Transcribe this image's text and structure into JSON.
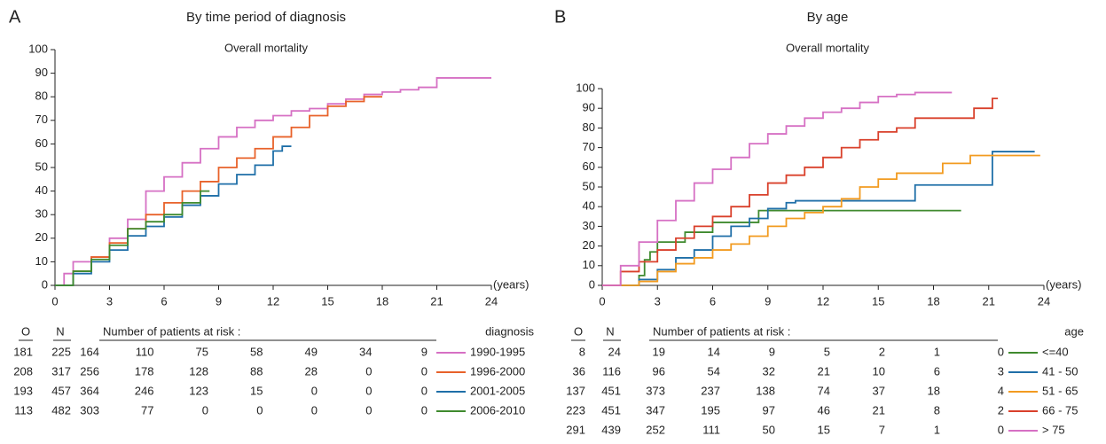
{
  "chart_data": [
    {
      "type": "line",
      "step": true,
      "label": "A",
      "title": "By time period of diagnosis",
      "subtitle": "Overall mortality",
      "x_label": "(years)",
      "xlim": [
        0,
        24
      ],
      "xticks": [
        0,
        3,
        6,
        9,
        12,
        15,
        18,
        21,
        24
      ],
      "ylim": [
        0,
        100
      ],
      "yticks": [
        0,
        10,
        20,
        30,
        40,
        50,
        60,
        70,
        80,
        90,
        100
      ],
      "series": [
        {
          "name": "1990-1995",
          "color": "#d670c4",
          "x": [
            0,
            0.5,
            1,
            2,
            3,
            4,
            5,
            6,
            7,
            8,
            9,
            10,
            11,
            12,
            13,
            14,
            15,
            16,
            17,
            18,
            19,
            20,
            21,
            24
          ],
          "values": [
            0,
            5,
            10,
            12,
            20,
            28,
            40,
            46,
            52,
            58,
            63,
            67,
            70,
            72,
            74,
            75,
            77,
            79,
            81,
            82,
            83,
            84,
            88,
            88
          ]
        },
        {
          "name": "1996-2000",
          "color": "#e8622a",
          "x": [
            0,
            1,
            2,
            3,
            4,
            5,
            6,
            7,
            8,
            9,
            10,
            11,
            12,
            13,
            14,
            15,
            16,
            17,
            18
          ],
          "values": [
            0,
            6,
            12,
            18,
            24,
            30,
            35,
            40,
            44,
            50,
            54,
            58,
            63,
            67,
            72,
            76,
            78,
            80,
            80
          ]
        },
        {
          "name": "2001-2005",
          "color": "#1f6fa8",
          "x": [
            0,
            1,
            2,
            3,
            4,
            5,
            6,
            7,
            8,
            9,
            10,
            11,
            12,
            12.5,
            13
          ],
          "values": [
            0,
            5,
            10,
            15,
            21,
            25,
            29,
            34,
            38,
            43,
            47,
            51,
            57,
            59,
            59
          ]
        },
        {
          "name": "2006-2010",
          "color": "#3f8a2e",
          "x": [
            0,
            1,
            2,
            3,
            4,
            5,
            6,
            7,
            8,
            8.5
          ],
          "values": [
            0,
            6,
            11,
            17,
            24,
            27,
            30,
            35,
            40,
            40
          ]
        }
      ],
      "risk_table": {
        "o_header": "O",
        "n_header": "N",
        "title": "Number of patients at risk :",
        "group_header": "diagnosis",
        "rows": [
          {
            "o": 181,
            "n": 225,
            "at_risk": [
              164,
              110,
              75,
              58,
              49,
              34,
              9
            ]
          },
          {
            "o": 208,
            "n": 317,
            "at_risk": [
              256,
              178,
              128,
              88,
              28,
              0,
              0
            ]
          },
          {
            "o": 193,
            "n": 457,
            "at_risk": [
              364,
              246,
              123,
              15,
              0,
              0,
              0
            ]
          },
          {
            "o": 113,
            "n": 482,
            "at_risk": [
              303,
              77,
              0,
              0,
              0,
              0,
              0
            ]
          }
        ]
      }
    },
    {
      "type": "line",
      "step": true,
      "label": "B",
      "title": "By age",
      "subtitle": "Overall mortality",
      "x_label": "(years)",
      "xlim": [
        0,
        24
      ],
      "xticks": [
        0,
        3,
        6,
        9,
        12,
        15,
        18,
        21,
        24
      ],
      "ylim": [
        0,
        100
      ],
      "yticks": [
        0,
        10,
        20,
        30,
        40,
        50,
        60,
        70,
        80,
        90,
        100
      ],
      "series": [
        {
          "name": "<=40",
          "color": "#3f8a2e",
          "x": [
            0,
            1.9,
            2,
            2.3,
            2.6,
            3,
            4,
            4.5,
            5.5,
            6,
            8,
            8.5,
            10,
            19.5
          ],
          "values": [
            0,
            0,
            5,
            13,
            17,
            22,
            22,
            27,
            27,
            32,
            32,
            38,
            38,
            38
          ]
        },
        {
          "name": "41 - 50",
          "color": "#1f6fa8",
          "x": [
            0,
            2,
            3,
            4,
            5,
            6,
            7,
            8,
            9,
            10,
            10.5,
            16.5,
            17,
            21,
            21.2,
            23.5
          ],
          "values": [
            0,
            3,
            8,
            14,
            18,
            25,
            30,
            34,
            39,
            42,
            43,
            43,
            51,
            51,
            68,
            68
          ]
        },
        {
          "name": "51 - 65",
          "color": "#f29b20",
          "x": [
            0,
            2,
            3,
            4,
            5,
            6,
            7,
            8,
            9,
            10,
            11,
            12,
            13,
            14,
            15,
            16,
            17,
            18.5,
            20,
            23.8
          ],
          "values": [
            0,
            2,
            7,
            11,
            14,
            18,
            21,
            25,
            30,
            34,
            37,
            40,
            44,
            50,
            54,
            57,
            57,
            62,
            66,
            66
          ]
        },
        {
          "name": "66 - 75",
          "color": "#d9402b",
          "x": [
            0,
            1,
            2,
            3,
            4,
            5,
            6,
            7,
            8,
            9,
            10,
            11,
            12,
            13,
            14,
            15,
            16,
            17,
            20,
            20.2,
            21,
            21.2,
            21.5
          ],
          "values": [
            0,
            7,
            12,
            18,
            24,
            30,
            35,
            40,
            46,
            52,
            56,
            60,
            65,
            70,
            74,
            78,
            80,
            85,
            85,
            90,
            90,
            95,
            95
          ]
        },
        {
          "name": "> 75",
          "color": "#d670c4",
          "x": [
            0,
            1,
            2,
            3,
            4,
            5,
            6,
            7,
            8,
            9,
            10,
            11,
            12,
            13,
            14,
            15,
            16,
            17,
            19
          ],
          "values": [
            0,
            10,
            22,
            33,
            43,
            52,
            59,
            65,
            72,
            77,
            81,
            85,
            88,
            90,
            93,
            96,
            97,
            98,
            98
          ]
        }
      ],
      "risk_table": {
        "o_header": "O",
        "n_header": "N",
        "title": "Number of patients at risk :",
        "group_header": "age",
        "rows": [
          {
            "o": 8,
            "n": 24,
            "at_risk": [
              19,
              14,
              9,
              5,
              2,
              1,
              0
            ]
          },
          {
            "o": 36,
            "n": 116,
            "at_risk": [
              96,
              54,
              32,
              21,
              10,
              6,
              3
            ]
          },
          {
            "o": 137,
            "n": 451,
            "at_risk": [
              373,
              237,
              138,
              74,
              37,
              18,
              4
            ]
          },
          {
            "o": 223,
            "n": 451,
            "at_risk": [
              347,
              195,
              97,
              46,
              21,
              8,
              2
            ]
          },
          {
            "o": 291,
            "n": 439,
            "at_risk": [
              252,
              111,
              50,
              15,
              7,
              1,
              0
            ]
          }
        ]
      }
    }
  ]
}
